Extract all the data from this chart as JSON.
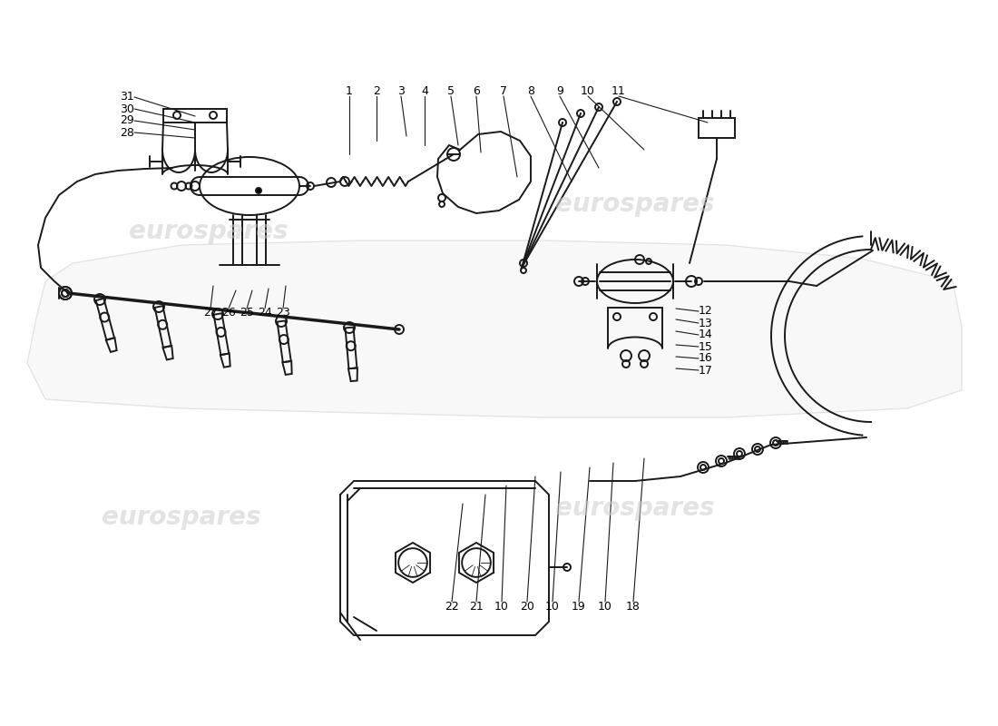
{
  "bg_color": "#ffffff",
  "line_color": "#1a1a1a",
  "watermark_color": "#cccccc",
  "watermark_text": "eurospares",
  "figsize": [
    11.0,
    8.0
  ],
  "dpi": 100
}
